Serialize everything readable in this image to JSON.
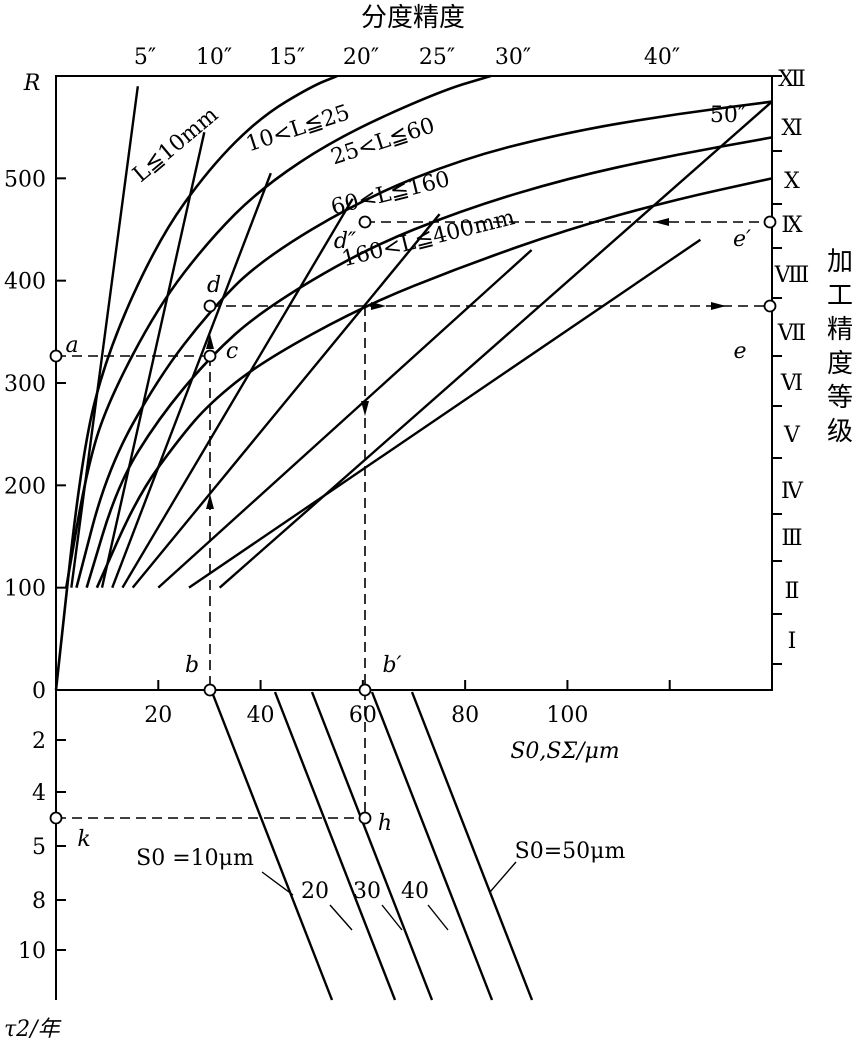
{
  "chart_data": {
    "type": "line",
    "title": "分度精度",
    "right_axis_title": "加工精度等级",
    "xlabel": "S0,SΣ/μm",
    "ylabel": "R",
    "lower_ylabel": "τ2/年",
    "xlim": [
      0,
      140
    ],
    "ylim": [
      0,
      600
    ],
    "x_ticks": [
      20,
      40,
      60,
      80,
      100
    ],
    "y_ticks": [
      0,
      100,
      200,
      300,
      400,
      500
    ],
    "lower_y_ticks": [
      0,
      2,
      4,
      5,
      8,
      10
    ],
    "top_labels": [
      "5″",
      "10″",
      "15″",
      "20″",
      "25″",
      "30″",
      "40″",
      "50″"
    ],
    "grades": [
      "Ⅰ",
      "Ⅱ",
      "Ⅲ",
      "Ⅳ",
      "Ⅴ",
      "Ⅵ",
      "Ⅶ",
      "Ⅷ",
      "Ⅸ",
      "Ⅹ",
      "Ⅺ",
      "Ⅻ"
    ],
    "length_ranges": [
      "L≦10mm",
      "10<L≦25",
      "25<L≦60",
      "60<L≦160",
      "160<L≦400mm"
    ],
    "curves": [
      {
        "name": "L≦10mm",
        "x": [
          0,
          5,
          10,
          20,
          30,
          40,
          50,
          55
        ],
        "y": [
          0,
          230,
          330,
          440,
          510,
          560,
          590,
          600
        ]
      },
      {
        "name": "10<L≦25",
        "x": [
          2,
          6,
          10,
          20,
          30,
          40,
          55,
          75,
          85
        ],
        "y": [
          100,
          215,
          280,
          375,
          440,
          490,
          540,
          585,
          600
        ]
      },
      {
        "name": "25<L≦60",
        "x": [
          4,
          10,
          20,
          30,
          40,
          60,
          80,
          100,
          120,
          140
        ],
        "y": [
          100,
          215,
          305,
          370,
          420,
          480,
          520,
          545,
          562,
          575
        ]
      },
      {
        "name": "60<L≦160",
        "x": [
          6,
          12,
          20,
          30,
          40,
          60,
          80,
          100,
          120,
          140
        ],
        "y": [
          100,
          200,
          265,
          325,
          370,
          430,
          470,
          500,
          522,
          540
        ]
      },
      {
        "name": "160<L≦400mm",
        "x": [
          8,
          16,
          24,
          30,
          40,
          60,
          80,
          100,
          120,
          140
        ],
        "y": [
          100,
          190,
          245,
          280,
          320,
          375,
          415,
          450,
          478,
          500
        ]
      }
    ],
    "accuracy_lines": [
      {
        "name": "5″",
        "x": [
          3,
          16
        ],
        "y": [
          100,
          590
        ]
      },
      {
        "name": "10″",
        "x": [
          9,
          29
        ],
        "y": [
          100,
          545
        ]
      },
      {
        "name": "15″",
        "x": [
          11,
          42
        ],
        "y": [
          100,
          505
        ]
      },
      {
        "name": "20″",
        "x": [
          13,
          58
        ],
        "y": [
          100,
          480
        ]
      },
      {
        "name": "25″",
        "x": [
          15,
          75
        ],
        "y": [
          100,
          465
        ]
      },
      {
        "name": "30″",
        "x": [
          20,
          93
        ],
        "y": [
          100,
          430
        ]
      },
      {
        "name": "40″",
        "x": [
          26,
          126
        ],
        "y": [
          100,
          440
        ]
      },
      {
        "name": "50″",
        "x": [
          32,
          140
        ],
        "y": [
          100,
          575
        ]
      }
    ],
    "lower_lines": {
      "labels": [
        "S0 =10μm",
        "20",
        "30",
        "40",
        "S0=50μm"
      ],
      "values": [
        10,
        20,
        30,
        40,
        50
      ]
    },
    "points": [
      "a",
      "b",
      "b′",
      "c",
      "d",
      "d″",
      "e",
      "e′",
      "h",
      "k"
    ]
  }
}
